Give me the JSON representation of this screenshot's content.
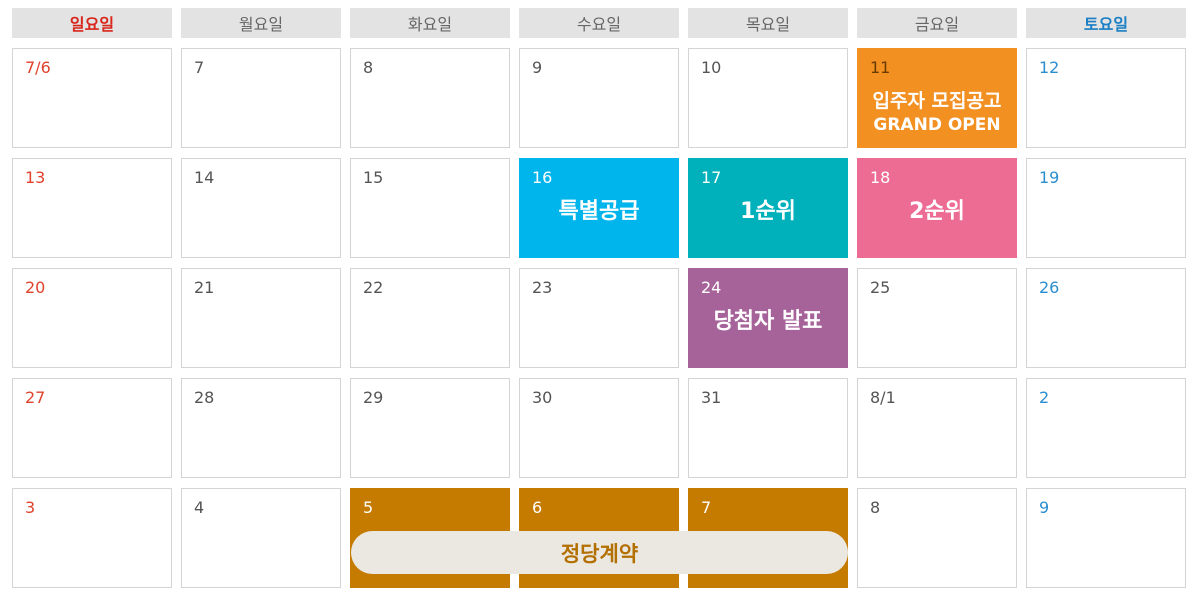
{
  "headers": [
    "일요일",
    "월요일",
    "화요일",
    "수요일",
    "목요일",
    "금요일",
    "토요일"
  ],
  "weeks": [
    [
      "7/6",
      "7",
      "8",
      "9",
      "10",
      "11",
      "12"
    ],
    [
      "13",
      "14",
      "15",
      "16",
      "17",
      "18",
      "19"
    ],
    [
      "20",
      "21",
      "22",
      "23",
      "24",
      "25",
      "26"
    ],
    [
      "27",
      "28",
      "29",
      "30",
      "31",
      "8/1",
      "2"
    ],
    [
      "3",
      "4",
      "5",
      "6",
      "7",
      "8",
      "9"
    ]
  ],
  "events": {
    "notice": {
      "line1": "입주자 모집공고",
      "line2": "GRAND OPEN"
    },
    "special": "특별공급",
    "first": "1순위",
    "second": "2순위",
    "winners": "당첨자 발표",
    "contract": "정당계약"
  },
  "colors": {
    "sunday": "#d8261b",
    "saturday": "#1a7fc4",
    "notice": "#f29022",
    "special": "#00b4ec",
    "first": "#00b1bc",
    "second": "#ec6c94",
    "winners": "#a66399",
    "contract": "#c57a00"
  }
}
